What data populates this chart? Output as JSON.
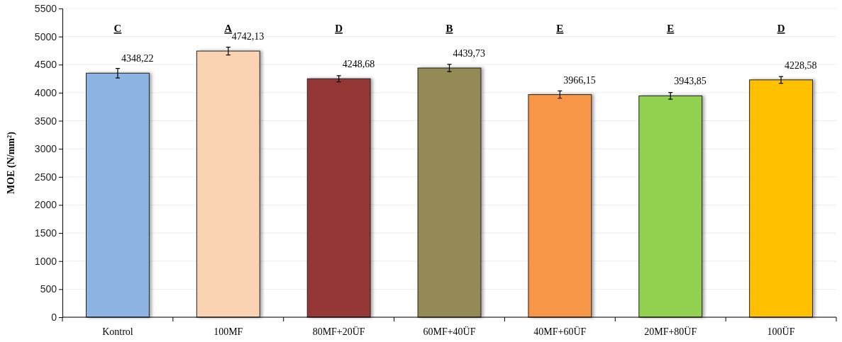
{
  "chart_data": {
    "type": "bar",
    "ylabel": "MOE (N/mm²)",
    "categories": [
      "Kontrol",
      "100MF",
      "80MF+20ÜF",
      "60MF+40ÜF",
      "40MF+60ÜF",
      "20MF+80ÜF",
      "100ÜF"
    ],
    "values": [
      4348.22,
      4742.13,
      4248.68,
      4439.73,
      3966.15,
      3943.85,
      4228.58
    ],
    "colors": [
      "#8eb4e3",
      "#fad3b2",
      "#953735",
      "#948a54",
      "#f79646",
      "#92d050",
      "#ffc000"
    ],
    "errors": [
      85,
      70,
      55,
      65,
      65,
      60,
      60
    ],
    "value_labels": [
      "4348,22",
      "4742,13",
      "4248,68",
      "4439,73",
      "3966,15",
      "3943,85",
      "4228,58"
    ],
    "annotations": [
      "C",
      "A",
      "D",
      "B",
      "E",
      "E",
      "D"
    ],
    "ylim": [
      0,
      5500
    ],
    "yticks": [
      0,
      500,
      1000,
      1500,
      2000,
      2500,
      3000,
      3500,
      4000,
      4500,
      5000,
      5500
    ],
    "grid": "y"
  }
}
